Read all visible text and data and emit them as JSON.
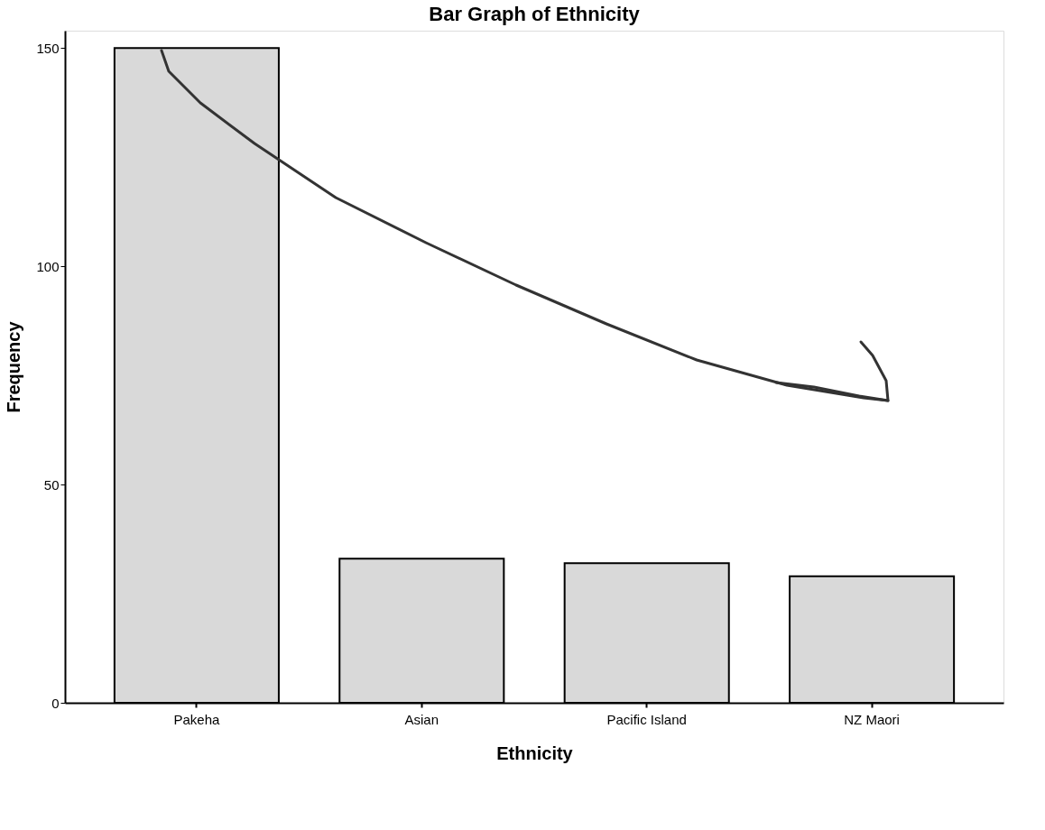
{
  "chart_data": {
    "type": "bar",
    "title": "Bar Graph of Ethnicity",
    "xlabel": "Ethnicity",
    "ylabel": "Frequency",
    "categories": [
      "Pakeha",
      "Asian",
      "Pacific Island",
      "NZ Maori"
    ],
    "values": [
      150,
      33,
      32,
      29
    ],
    "color": "#d9d9d9",
    "ylim": [
      0,
      154
    ],
    "yticks": [
      0,
      50,
      100,
      150
    ],
    "grid": false
  }
}
